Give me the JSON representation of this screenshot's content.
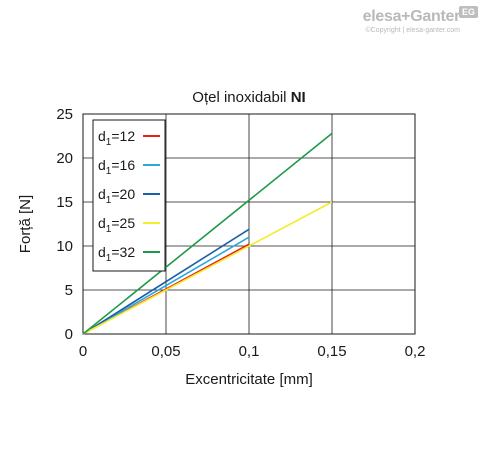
{
  "logo": {
    "brand": "elesa+Ganter",
    "badge": "EG",
    "copyright": "©Copyright | elesa-ganter.com"
  },
  "chart_data": {
    "type": "line",
    "title_prefix": "Oțel inoxidabil ",
    "title_bold": "NI",
    "xlabel": "Excentricitate [mm]",
    "ylabel": "Forță [N]",
    "xlim": [
      0,
      0.2
    ],
    "ylim": [
      0,
      25
    ],
    "x_ticks": [
      0,
      0.05,
      0.1,
      0.15,
      0.2
    ],
    "x_tick_labels": [
      "0",
      "0,05",
      "0,1",
      "0,15",
      "0,2"
    ],
    "y_ticks": [
      0,
      5,
      10,
      15,
      20,
      25
    ],
    "y_tick_labels": [
      "0",
      "5",
      "10",
      "15",
      "20",
      "25"
    ],
    "grid": true,
    "legend_position": "top-left",
    "series": [
      {
        "name": "d1=12",
        "label_base": "d",
        "label_sub": "1",
        "label_rest": "=12",
        "color": "#e8201c",
        "x": [
          0,
          0.1
        ],
        "y": [
          0,
          10.2
        ]
      },
      {
        "name": "d1=16",
        "label_base": "d",
        "label_sub": "1",
        "label_rest": "=16",
        "color": "#29a8e0",
        "x": [
          0,
          0.1
        ],
        "y": [
          0,
          11.0
        ]
      },
      {
        "name": "d1=20",
        "label_base": "d",
        "label_sub": "1",
        "label_rest": "=20",
        "color": "#1a5fa8",
        "x": [
          0,
          0.1
        ],
        "y": [
          0,
          11.9
        ]
      },
      {
        "name": "d1=25",
        "label_base": "d",
        "label_sub": "1",
        "label_rest": "=25",
        "color": "#f5ec2a",
        "x": [
          0,
          0.15
        ],
        "y": [
          0,
          15.0
        ]
      },
      {
        "name": "d1=32",
        "label_base": "d",
        "label_sub": "1",
        "label_rest": "=32",
        "color": "#1e9a4a",
        "x": [
          0,
          0.15
        ],
        "y": [
          0,
          22.8
        ]
      }
    ]
  }
}
